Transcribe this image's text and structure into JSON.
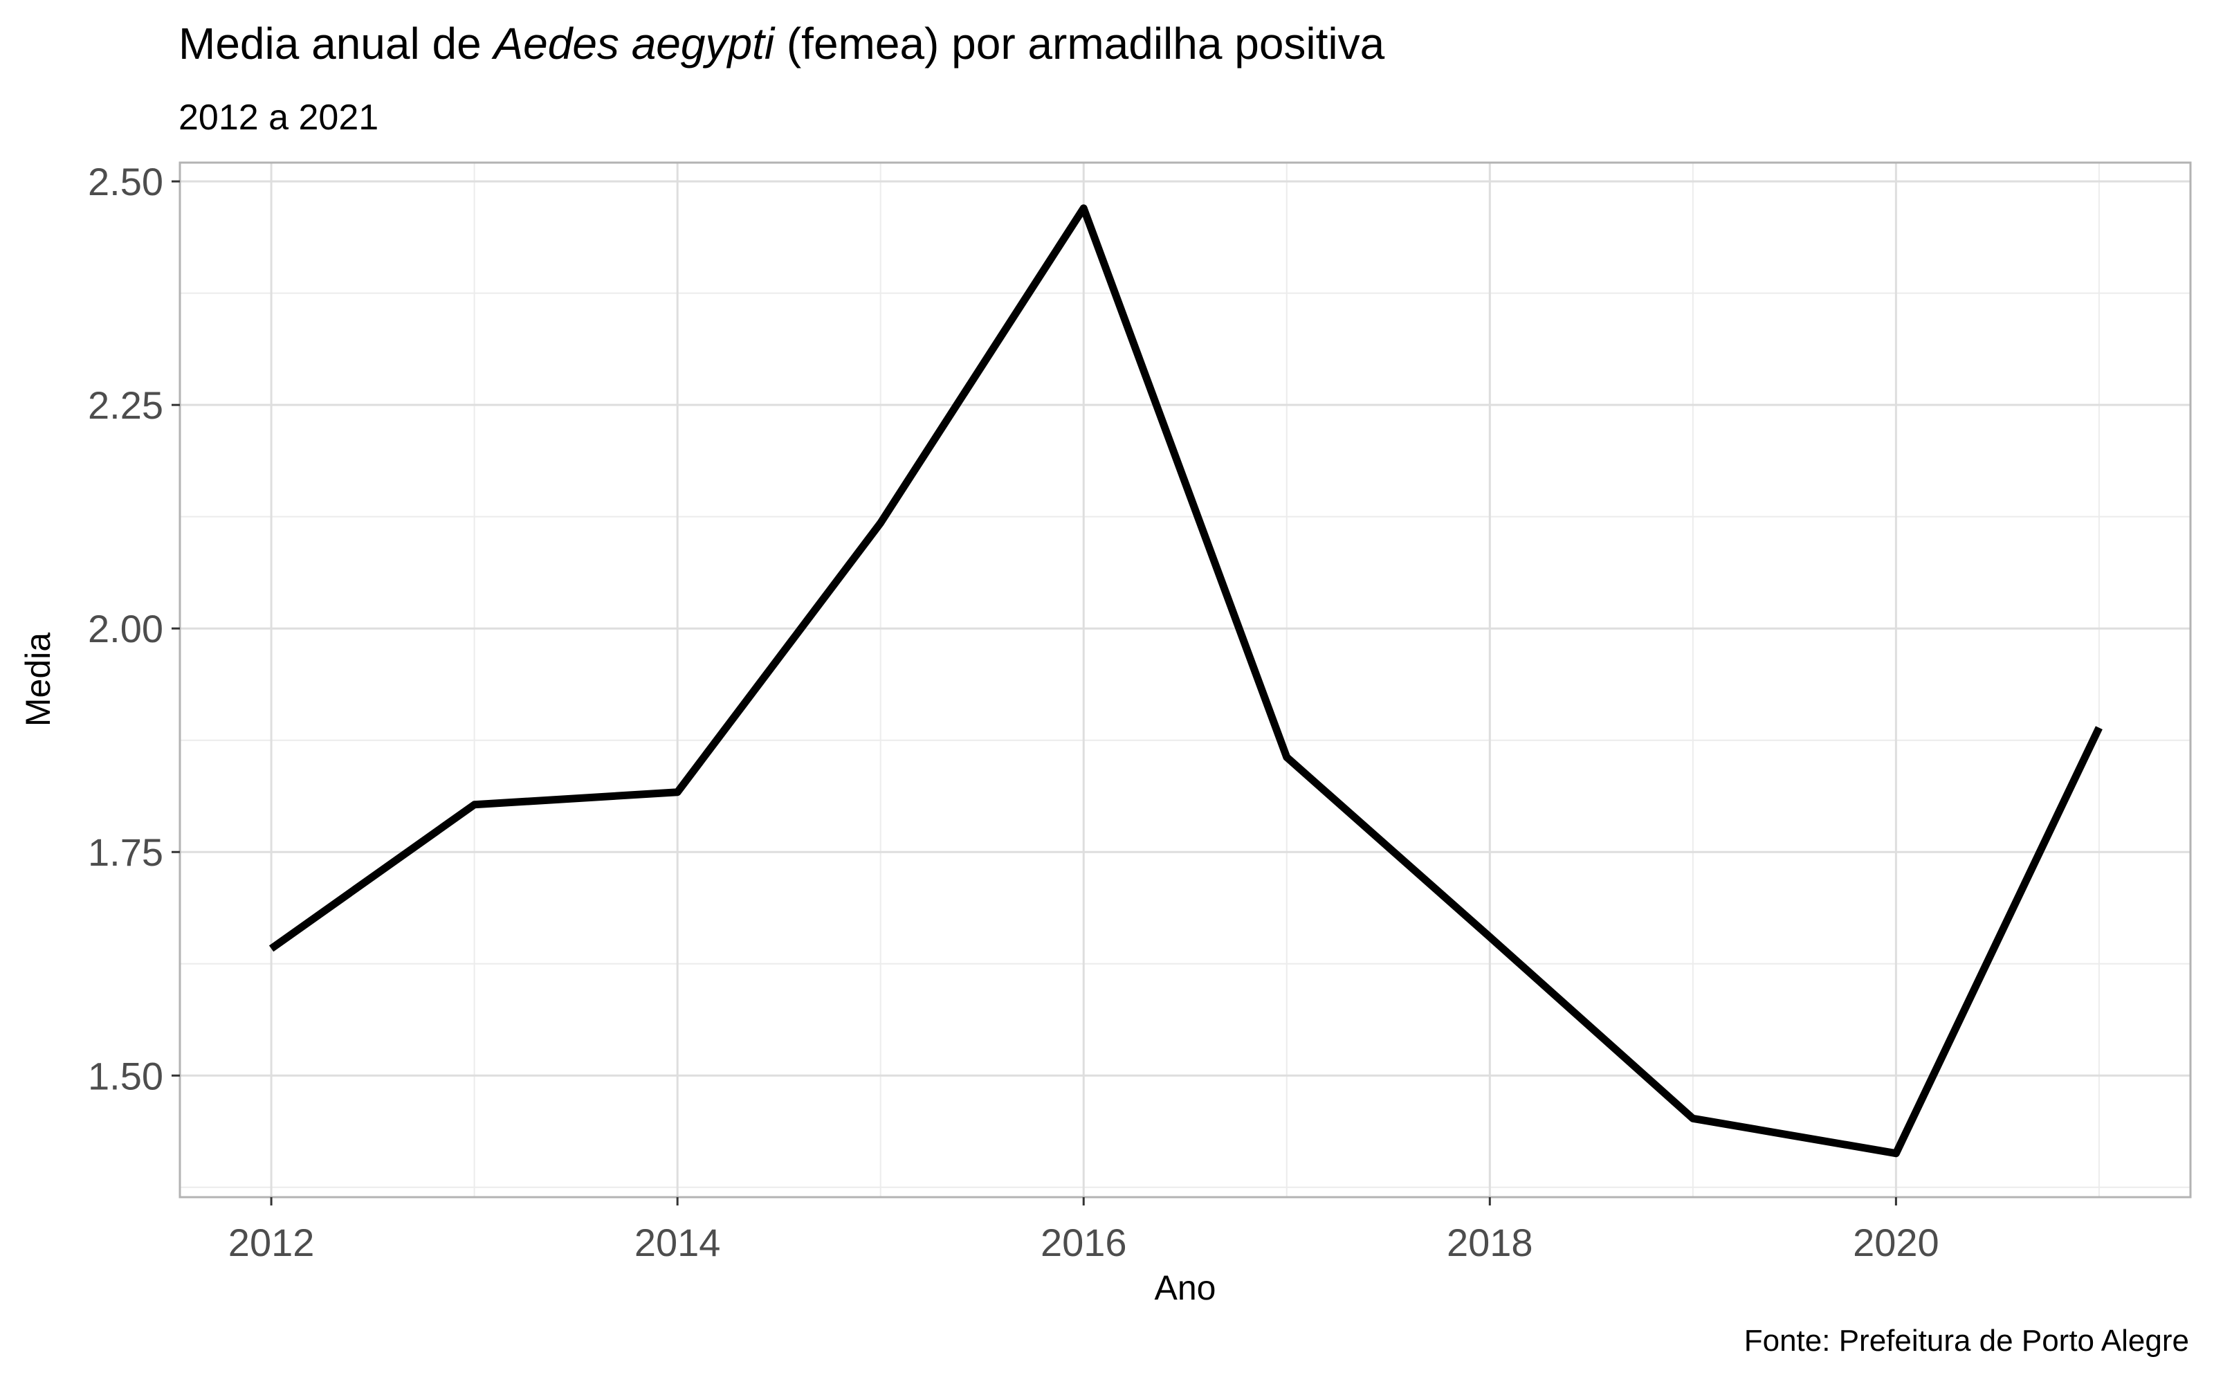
{
  "chart_data": {
    "type": "line",
    "title": {
      "prefix": "Media anual de ",
      "species": "Aedes aegypti",
      "suffix": " (femea) por armadilha positiva"
    },
    "subtitle": "2012 a 2021",
    "xlabel": "Ano",
    "ylabel": "Media",
    "caption": "Fonte: Prefeitura de Porto Alegre",
    "x": [
      2012,
      2013,
      2014,
      2015,
      2016,
      2017,
      2018,
      2019,
      2020,
      2021
    ],
    "y": [
      1.642,
      1.803,
      1.817,
      2.118,
      2.47,
      1.856,
      1.655,
      1.452,
      1.413,
      1.889
    ],
    "xlim": [
      2011.55,
      2021.45
    ],
    "ylim": [
      1.364,
      2.521
    ],
    "xticks": [
      2012,
      2014,
      2016,
      2018,
      2020
    ],
    "xtick_labels": [
      "2012",
      "2014",
      "2016",
      "2018",
      "2020"
    ],
    "yticks": [
      1.5,
      1.75,
      2.0,
      2.25,
      2.5
    ],
    "ytick_labels": [
      "1.50",
      "1.75",
      "2.00",
      "2.25",
      "2.50"
    ],
    "x_minor": [
      2013,
      2015,
      2017,
      2019,
      2021
    ],
    "y_minor": [
      1.375,
      1.625,
      1.875,
      2.125,
      2.375
    ],
    "grid": true,
    "line_color": "#000000",
    "grid_color": "#dedede",
    "tick_label_color": "#4d4d4d"
  }
}
